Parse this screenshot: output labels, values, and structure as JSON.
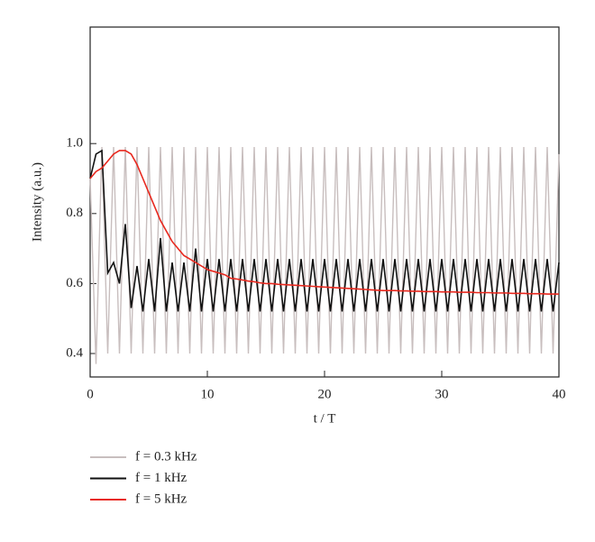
{
  "chart_data": {
    "type": "line",
    "xlabel": "t / T",
    "ylabel": "Intensity (a.u.)",
    "xlim": [
      0,
      40
    ],
    "xticks": [
      0,
      10,
      20,
      30,
      40
    ],
    "ylim": [
      0.333,
      1.333
    ],
    "yticks": [
      0.4,
      0.6,
      0.8,
      {
        "value": 1,
        "label": "1.0"
      }
    ],
    "x": [
      0,
      0.5,
      1,
      1.5,
      2,
      2.5,
      3,
      3.5,
      4,
      4.5,
      5,
      5.5,
      6,
      6.5,
      7,
      7.5,
      8,
      8.5,
      9,
      9.5,
      10,
      10.5,
      11,
      11.5,
      12,
      12.5,
      13,
      13.5,
      14,
      14.5,
      15,
      15.5,
      16,
      16.5,
      17,
      17.5,
      18,
      18.5,
      19,
      19.5,
      20,
      20.5,
      21,
      21.5,
      22,
      22.5,
      23,
      23.5,
      24,
      24.5,
      25,
      25.5,
      26,
      26.5,
      27,
      27.5,
      28,
      28.5,
      29,
      29.5,
      30,
      30.5,
      31,
      31.5,
      32,
      32.5,
      33,
      33.5,
      34,
      34.5,
      35,
      35.5,
      36,
      36.5,
      37,
      37.5,
      38,
      38.5,
      39,
      39.5,
      40
    ],
    "series": [
      {
        "name": "f = 0.3 kHz",
        "color": "#c8bebe",
        "values": [
          0.9,
          0.37,
          0.99,
          0.4,
          0.99,
          0.4,
          0.99,
          0.4,
          0.99,
          0.4,
          0.99,
          0.4,
          0.99,
          0.4,
          0.99,
          0.4,
          0.99,
          0.4,
          0.99,
          0.4,
          0.99,
          0.4,
          0.99,
          0.4,
          0.99,
          0.4,
          0.99,
          0.4,
          0.99,
          0.4,
          0.99,
          0.4,
          0.99,
          0.4,
          0.99,
          0.4,
          0.99,
          0.4,
          0.99,
          0.4,
          0.99,
          0.4,
          0.99,
          0.4,
          0.99,
          0.4,
          0.99,
          0.4,
          0.99,
          0.4,
          0.99,
          0.4,
          0.99,
          0.4,
          0.99,
          0.4,
          0.99,
          0.4,
          0.99,
          0.4,
          0.99,
          0.4,
          0.99,
          0.4,
          0.99,
          0.4,
          0.99,
          0.4,
          0.99,
          0.4,
          0.99,
          0.4,
          0.99,
          0.4,
          0.99,
          0.4,
          0.99,
          0.4,
          0.99,
          0.4,
          0.97
        ]
      },
      {
        "name": "f = 1 kHz",
        "color": "#111111",
        "values": [
          0.9,
          0.97,
          0.98,
          0.63,
          0.66,
          0.6,
          0.77,
          0.53,
          0.65,
          0.52,
          0.67,
          0.52,
          0.73,
          0.52,
          0.66,
          0.52,
          0.66,
          0.52,
          0.7,
          0.52,
          0.67,
          0.52,
          0.67,
          0.52,
          0.67,
          0.52,
          0.67,
          0.52,
          0.67,
          0.52,
          0.67,
          0.52,
          0.67,
          0.52,
          0.67,
          0.52,
          0.67,
          0.52,
          0.67,
          0.52,
          0.67,
          0.52,
          0.67,
          0.52,
          0.67,
          0.52,
          0.67,
          0.52,
          0.67,
          0.52,
          0.67,
          0.52,
          0.67,
          0.52,
          0.67,
          0.52,
          0.67,
          0.52,
          0.67,
          0.52,
          0.67,
          0.52,
          0.67,
          0.52,
          0.67,
          0.52,
          0.67,
          0.52,
          0.67,
          0.52,
          0.67,
          0.52,
          0.67,
          0.52,
          0.67,
          0.52,
          0.67,
          0.52,
          0.67,
          0.52,
          0.66
        ]
      },
      {
        "name": "f = 5 kHz",
        "color": "#e8281e",
        "values": [
          0.9,
          0.92,
          0.93,
          0.95,
          0.97,
          0.98,
          0.98,
          0.97,
          0.94,
          0.9,
          0.86,
          0.82,
          0.78,
          0.75,
          0.72,
          0.7,
          0.68,
          0.67,
          0.66,
          0.65,
          0.64,
          0.635,
          0.63,
          0.625,
          0.615,
          0.613,
          0.61,
          0.607,
          0.605,
          0.602,
          0.6,
          0.6,
          0.598,
          0.597,
          0.596,
          0.595,
          0.594,
          0.593,
          0.592,
          0.591,
          0.59,
          0.589,
          0.588,
          0.587,
          0.586,
          0.585,
          0.584,
          0.583,
          0.582,
          0.581,
          0.58,
          0.58,
          0.58,
          0.579,
          0.579,
          0.578,
          0.578,
          0.577,
          0.577,
          0.577,
          0.576,
          0.576,
          0.576,
          0.575,
          0.575,
          0.575,
          0.574,
          0.574,
          0.574,
          0.573,
          0.573,
          0.573,
          0.572,
          0.572,
          0.572,
          0.571,
          0.571,
          0.571,
          0.57,
          0.57,
          0.57
        ]
      }
    ]
  }
}
